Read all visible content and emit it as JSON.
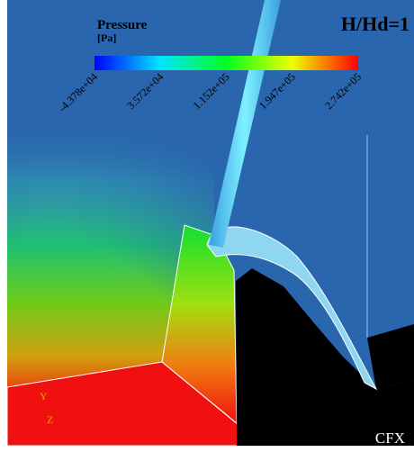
{
  "legend": {
    "title": "Pressure",
    "unit": "[Pa]",
    "ticks": [
      "-4.378e+04",
      "3.572e+04",
      "1.152e+05",
      "1.947e+05",
      "2.742e+05"
    ]
  },
  "annotation": "H/Hd=1",
  "axes": {
    "y": "Y",
    "z": "Z"
  },
  "logo": "CFX"
}
